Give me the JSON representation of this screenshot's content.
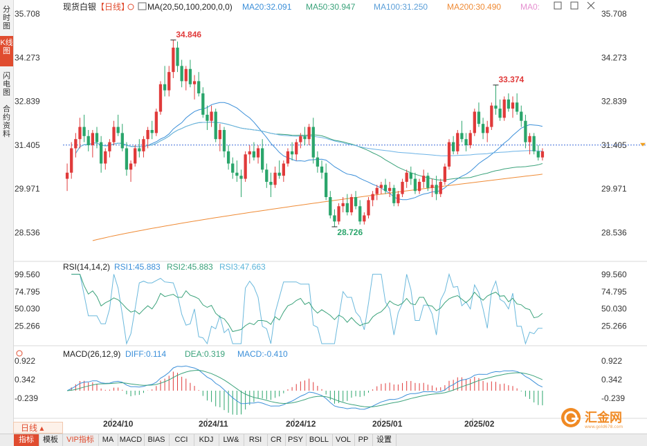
{
  "sidebar": {
    "tabs": [
      {
        "label": "分时图",
        "active": false
      },
      {
        "label": "K线图",
        "active": true
      },
      {
        "label": "闪电图",
        "active": false
      },
      {
        "label": "合约资料",
        "active": false
      }
    ]
  },
  "main_header": {
    "instrument": "现货白银",
    "period_tag": "【日线】",
    "ma_label": "MA(20,50,100,200,0,0)",
    "ma_values": [
      {
        "text": "MA20:32.091",
        "color": "#3b8fd9"
      },
      {
        "text": "MA50:30.947",
        "color": "#3aa27a"
      },
      {
        "text": "MA100:31.250",
        "color": "#5a9ed8"
      },
      {
        "text": "MA200:30.490",
        "color": "#ef8a34"
      },
      {
        "text": "MA0:",
        "color": "#e58fd0"
      }
    ]
  },
  "price_axis": {
    "ticks": [
      "35.708",
      "34.273",
      "32.839",
      "31.405",
      "29.971",
      "28.536"
    ],
    "current_price": "31.405"
  },
  "annotations": {
    "high1": "34.846",
    "high2": "33.374",
    "low": "28.726"
  },
  "rsi_panel": {
    "label": "RSI(14,14,2)",
    "values": [
      {
        "text": "RSI1:45.883",
        "color": "#3b8fd9"
      },
      {
        "text": "RSI2:45.883",
        "color": "#3aa27a"
      },
      {
        "text": "RSI3:47.663",
        "color": "#5ab4d9"
      }
    ],
    "ticks": [
      "99.560",
      "74.795",
      "50.030",
      "25.266"
    ]
  },
  "macd_panel": {
    "label": "MACD(26,12,9)",
    "values": [
      {
        "text": "DIFF:0.114",
        "color": "#3b8fd9"
      },
      {
        "text": "DEA:0.319",
        "color": "#3aa27a"
      },
      {
        "text": "MACD:-0.410",
        "color": "#3b8fd9"
      }
    ],
    "ticks": [
      "0.922",
      "0.342",
      "-0.239"
    ]
  },
  "time_axis": [
    "2024/10",
    "2024/11",
    "2024/12",
    "2025/01",
    "2025/02"
  ],
  "period_selector": "日线",
  "bottom_tabs": [
    {
      "label": "指标",
      "active": true,
      "vip": false
    },
    {
      "label": "模板",
      "active": false,
      "vip": false
    },
    {
      "label": "VIP指标",
      "active": false,
      "vip": true
    },
    {
      "label": "MA",
      "active": false,
      "vip": false
    },
    {
      "label": "MACD",
      "active": false,
      "vip": false
    },
    {
      "label": "BIAS",
      "active": false,
      "vip": false
    },
    {
      "label": "CCI",
      "active": false,
      "vip": false
    },
    {
      "label": "KDJ",
      "active": false,
      "vip": false
    },
    {
      "label": "LW&",
      "active": false,
      "vip": false
    },
    {
      "label": "RSI",
      "active": false,
      "vip": false
    },
    {
      "label": "CR",
      "active": false,
      "vip": false
    },
    {
      "label": "PSY",
      "active": false,
      "vip": false
    },
    {
      "label": "BOLL",
      "active": false,
      "vip": false
    },
    {
      "label": "VOL",
      "active": false,
      "vip": false
    },
    {
      "label": "PP",
      "active": false,
      "vip": false
    },
    {
      "label": "设置",
      "active": false,
      "vip": false
    }
  ],
  "logo": {
    "text": "汇金网",
    "subtext": "www.gold678.com"
  },
  "colors": {
    "up": "#e03a3a",
    "down": "#2aa56b",
    "ma20": "#3b8fd9",
    "ma50": "#3aa27a",
    "ma100": "#5a9ed8",
    "ma200": "#ef8a34",
    "accent": "#e04c2f"
  },
  "chart_data": {
    "type": "candlestick",
    "title": "现货白银 日线",
    "x_range": [
      "2024-09",
      "2025-02"
    ],
    "y_range": [
      28.0,
      35.708
    ],
    "candles": [
      [
        30.3,
        30.8,
        29.9,
        30.5
      ],
      [
        30.5,
        31.5,
        30.3,
        31.3
      ],
      [
        31.3,
        31.8,
        31.0,
        31.6
      ],
      [
        31.6,
        32.3,
        31.3,
        32.0
      ],
      [
        32.0,
        32.4,
        31.5,
        31.7
      ],
      [
        31.7,
        31.9,
        31.2,
        31.4
      ],
      [
        31.4,
        31.9,
        31.0,
        31.8
      ],
      [
        31.8,
        32.0,
        31.3,
        31.5
      ],
      [
        31.5,
        31.7,
        30.5,
        30.8
      ],
      [
        30.8,
        31.3,
        30.6,
        31.2
      ],
      [
        31.2,
        31.6,
        31.0,
        31.5
      ],
      [
        31.5,
        32.2,
        31.4,
        32.0
      ],
      [
        32.0,
        32.4,
        31.7,
        31.8
      ],
      [
        31.8,
        32.1,
        31.2,
        31.3
      ],
      [
        31.3,
        31.5,
        30.4,
        30.6
      ],
      [
        30.6,
        30.9,
        30.2,
        30.8
      ],
      [
        30.8,
        31.4,
        30.7,
        31.3
      ],
      [
        31.3,
        31.6,
        31.0,
        31.2
      ],
      [
        31.2,
        31.7,
        31.0,
        31.6
      ],
      [
        31.6,
        32.0,
        31.3,
        31.9
      ],
      [
        31.9,
        32.2,
        31.6,
        31.8
      ],
      [
        31.8,
        32.6,
        31.7,
        32.5
      ],
      [
        32.5,
        33.5,
        32.4,
        33.4
      ],
      [
        33.4,
        34.0,
        33.0,
        33.2
      ],
      [
        33.2,
        34.0,
        33.0,
        33.8
      ],
      [
        33.8,
        34.85,
        33.6,
        34.6
      ],
      [
        34.6,
        34.8,
        33.8,
        34.0
      ],
      [
        34.0,
        34.2,
        33.3,
        33.5
      ],
      [
        33.5,
        34.0,
        33.2,
        33.9
      ],
      [
        33.9,
        34.2,
        33.3,
        33.4
      ],
      [
        33.4,
        33.7,
        32.9,
        33.5
      ],
      [
        33.5,
        33.8,
        33.0,
        33.1
      ],
      [
        33.1,
        33.3,
        32.3,
        32.4
      ],
      [
        32.4,
        32.7,
        31.9,
        32.2
      ],
      [
        32.2,
        32.7,
        32.0,
        32.5
      ],
      [
        32.5,
        32.6,
        31.5,
        31.6
      ],
      [
        31.6,
        32.1,
        31.2,
        31.9
      ],
      [
        31.9,
        32.0,
        31.0,
        31.2
      ],
      [
        31.2,
        31.4,
        30.6,
        30.8
      ],
      [
        30.8,
        31.0,
        30.3,
        30.5
      ],
      [
        30.5,
        30.9,
        30.2,
        30.4
      ],
      [
        30.4,
        30.6,
        29.7,
        30.3
      ],
      [
        30.3,
        31.2,
        30.2,
        31.1
      ],
      [
        31.1,
        31.4,
        30.8,
        31.2
      ],
      [
        31.2,
        31.5,
        30.9,
        31.0
      ],
      [
        31.0,
        31.4,
        30.8,
        31.3
      ],
      [
        31.3,
        31.6,
        30.5,
        30.6
      ],
      [
        30.6,
        30.8,
        30.0,
        30.2
      ],
      [
        30.2,
        30.5,
        29.7,
        30.1
      ],
      [
        30.1,
        30.7,
        30.0,
        30.5
      ],
      [
        30.5,
        30.9,
        30.3,
        30.4
      ],
      [
        30.4,
        30.9,
        30.2,
        30.8
      ],
      [
        30.8,
        31.3,
        30.7,
        31.2
      ],
      [
        31.2,
        31.5,
        30.9,
        31.1
      ],
      [
        31.1,
        31.6,
        30.9,
        31.5
      ],
      [
        31.5,
        31.8,
        31.3,
        31.7
      ],
      [
        31.7,
        32.0,
        31.4,
        31.6
      ],
      [
        31.6,
        32.1,
        31.4,
        32.0
      ],
      [
        32.0,
        32.3,
        30.8,
        31.0
      ],
      [
        31.0,
        31.2,
        30.5,
        30.7
      ],
      [
        30.7,
        30.9,
        30.3,
        30.5
      ],
      [
        30.5,
        30.8,
        29.6,
        29.7
      ],
      [
        29.7,
        29.9,
        29.0,
        29.1
      ],
      [
        29.1,
        29.3,
        28.726,
        28.9
      ],
      [
        28.9,
        29.5,
        28.8,
        29.4
      ],
      [
        29.4,
        29.7,
        29.2,
        29.5
      ],
      [
        29.5,
        29.8,
        29.1,
        29.2
      ],
      [
        29.2,
        29.8,
        29.1,
        29.7
      ],
      [
        29.7,
        29.9,
        29.3,
        29.4
      ],
      [
        29.4,
        29.6,
        28.8,
        28.9
      ],
      [
        28.9,
        29.2,
        28.8,
        29.1
      ],
      [
        29.1,
        29.7,
        29.0,
        29.6
      ],
      [
        29.6,
        29.9,
        29.4,
        29.8
      ],
      [
        29.8,
        30.1,
        29.6,
        30.0
      ],
      [
        30.0,
        30.2,
        29.8,
        30.1
      ],
      [
        30.1,
        30.3,
        29.8,
        29.9
      ],
      [
        29.9,
        30.2,
        29.7,
        30.0
      ],
      [
        30.0,
        30.1,
        29.4,
        29.5
      ],
      [
        29.5,
        29.9,
        29.4,
        29.8
      ],
      [
        29.8,
        30.3,
        29.7,
        30.2
      ],
      [
        30.2,
        30.6,
        30.0,
        30.5
      ],
      [
        30.5,
        30.7,
        30.1,
        30.3
      ],
      [
        30.3,
        30.5,
        29.8,
        29.9
      ],
      [
        29.9,
        30.3,
        29.8,
        30.2
      ],
      [
        30.2,
        30.6,
        30.0,
        30.4
      ],
      [
        30.4,
        30.5,
        29.9,
        30.0
      ],
      [
        30.0,
        30.3,
        29.7,
        30.1
      ],
      [
        30.1,
        30.4,
        29.6,
        29.8
      ],
      [
        29.8,
        30.3,
        29.7,
        30.2
      ],
      [
        30.2,
        30.8,
        30.1,
        30.7
      ],
      [
        30.7,
        31.6,
        30.6,
        31.5
      ],
      [
        31.5,
        31.7,
        31.1,
        31.2
      ],
      [
        31.2,
        31.9,
        31.1,
        31.8
      ],
      [
        31.8,
        32.2,
        31.5,
        31.6
      ],
      [
        31.6,
        31.8,
        31.2,
        31.4
      ],
      [
        31.4,
        31.9,
        31.3,
        31.8
      ],
      [
        31.8,
        32.6,
        31.7,
        32.5
      ],
      [
        32.5,
        32.8,
        32.0,
        32.1
      ],
      [
        32.1,
        32.3,
        31.6,
        31.8
      ],
      [
        31.8,
        32.2,
        31.5,
        32.0
      ],
      [
        32.0,
        32.8,
        31.9,
        32.7
      ],
      [
        32.7,
        33.374,
        32.4,
        32.6
      ],
      [
        32.6,
        32.9,
        32.2,
        32.3
      ],
      [
        32.3,
        33.0,
        32.2,
        32.9
      ],
      [
        32.9,
        33.1,
        32.5,
        32.6
      ],
      [
        32.6,
        33.0,
        32.3,
        32.8
      ],
      [
        32.8,
        33.1,
        32.4,
        32.5
      ],
      [
        32.5,
        32.7,
        32.0,
        32.2
      ],
      [
        32.2,
        32.4,
        31.3,
        31.5
      ],
      [
        31.5,
        31.8,
        31.1,
        31.7
      ],
      [
        31.7,
        31.8,
        31.1,
        31.2
      ],
      [
        31.2,
        31.4,
        30.9,
        31.0
      ],
      [
        31.0,
        31.3,
        30.9,
        31.2
      ]
    ]
  }
}
